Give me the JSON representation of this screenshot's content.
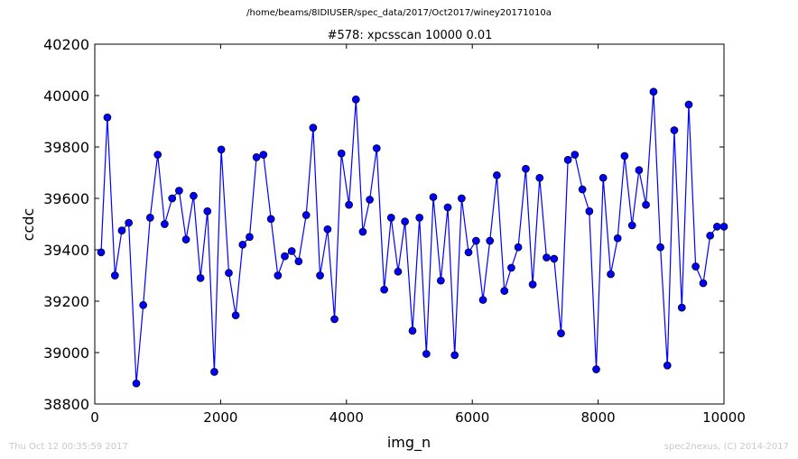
{
  "suptitle": "/home/beams/8IDIUSER/spec_data/2017/Oct2017/winey20171010a",
  "footer": {
    "timestamp": "Thu Oct 12 00:35:59 2017",
    "credit": "spec2nexus, (C) 2014-2017"
  },
  "colors": {
    "series": "#0000ff",
    "marker_fill": "#0000ff",
    "axes": "#000000",
    "footer": "#c8c8c8"
  },
  "chart_data": {
    "type": "line",
    "title": "#578: xpcsscan 10000 0.01",
    "xlabel": "img_n",
    "ylabel": "ccdc",
    "xlim": [
      0,
      10000
    ],
    "ylim": [
      38800,
      40200
    ],
    "xticks": [
      0,
      2000,
      4000,
      6000,
      8000,
      10000
    ],
    "yticks": [
      38800,
      39000,
      39200,
      39400,
      39600,
      39800,
      40000,
      40200
    ],
    "grid": false,
    "series": [
      {
        "x": [
          100,
          200,
          320,
          430,
          540,
          660,
          770,
          880,
          1000,
          1110,
          1230,
          1340,
          1450,
          1570,
          1680,
          1790,
          1900,
          2010,
          2130,
          2240,
          2350,
          2460,
          2570,
          2680,
          2800,
          2910,
          3020,
          3130,
          3240,
          3360,
          3470,
          3580,
          3700,
          3810,
          3920,
          4040,
          4150,
          4260,
          4370,
          4480,
          4600,
          4710,
          4820,
          4930,
          5050,
          5160,
          5270,
          5380,
          5500,
          5610,
          5720,
          5830,
          5940,
          6060,
          6170,
          6280,
          6390,
          6510,
          6620,
          6730,
          6850,
          6960,
          7070,
          7180,
          7300,
          7410,
          7520,
          7630,
          7750,
          7860,
          7970,
          8080,
          8200,
          8310,
          8420,
          8540,
          8650,
          8760,
          8880,
          8990,
          9100,
          9210,
          9330,
          9440,
          9550,
          9670,
          9780,
          9890,
          10000
        ],
        "y": [
          39390,
          39915,
          39300,
          39475,
          39505,
          38880,
          39185,
          39525,
          39770,
          39500,
          39600,
          39630,
          39440,
          39610,
          39290,
          39550,
          38925,
          39790,
          39310,
          39145,
          39420,
          39450,
          39760,
          39770,
          39520,
          39300,
          39375,
          39395,
          39355,
          39535,
          39875,
          39300,
          39480,
          39130,
          39775,
          39575,
          39985,
          39470,
          39595,
          39795,
          39245,
          39525,
          39315,
          39510,
          39085,
          39525,
          38995,
          39605,
          39280,
          39565,
          38990,
          39600,
          39390,
          39435,
          39205,
          39435,
          39690,
          39240,
          39330,
          39410,
          39715,
          39265,
          39680,
          39370,
          39365,
          39075,
          39750,
          39770,
          39635,
          39550,
          38935,
          39680,
          39305,
          39445,
          39765,
          39495,
          39710,
          39575,
          40015,
          39410,
          38950,
          39865,
          39175,
          39965,
          39335,
          39270,
          39455,
          39490,
          39490
        ]
      }
    ]
  }
}
